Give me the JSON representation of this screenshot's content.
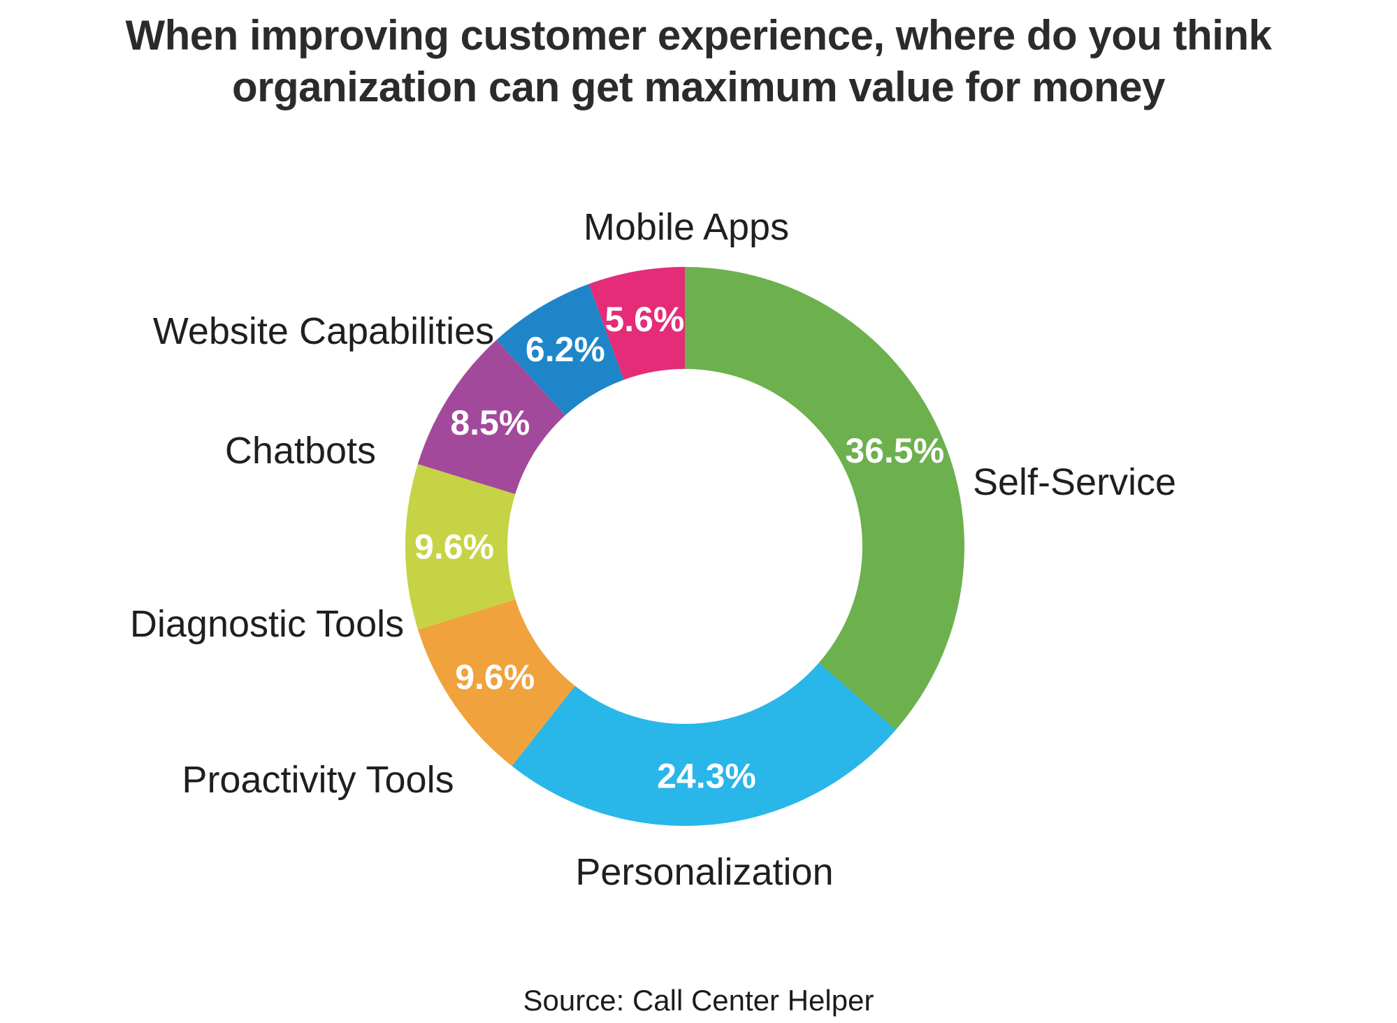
{
  "header": {
    "title": "When improving customer experience, where do you think organization can get maximum value for money",
    "title_lines": [
      "When improving customer experience, where do you think",
      "organization can get maximum value for money"
    ]
  },
  "chart_data": {
    "type": "pie",
    "subtype": "donut",
    "title": "When improving customer experience, where do you think organization can get maximum value for money",
    "categories": [
      "Self-Service",
      "Personalization",
      "Proactivity Tools",
      "Diagnostic Tools",
      "Chatbots",
      "Website Capabilities",
      "Mobile Apps"
    ],
    "values": [
      36.5,
      24.3,
      9.6,
      9.6,
      8.5,
      6.2,
      5.6
    ],
    "value_labels": [
      "36.5%",
      "24.3%",
      "9.6%",
      "9.6%",
      "8.5%",
      "6.2%",
      "5.6%"
    ],
    "colors": [
      "#6db04e",
      "#29b6e8",
      "#f0a23c",
      "#c6d345",
      "#a3499c",
      "#1e86c8",
      "#e42c79"
    ],
    "start_angle_deg": 0,
    "direction": "clockwise",
    "legend_position": "outside-labels",
    "background": "#ffffff",
    "percent_label_color": "#ffffff",
    "source": "Source: Call Center Helper"
  },
  "footer": {
    "source": "Source: Call Center Helper"
  }
}
